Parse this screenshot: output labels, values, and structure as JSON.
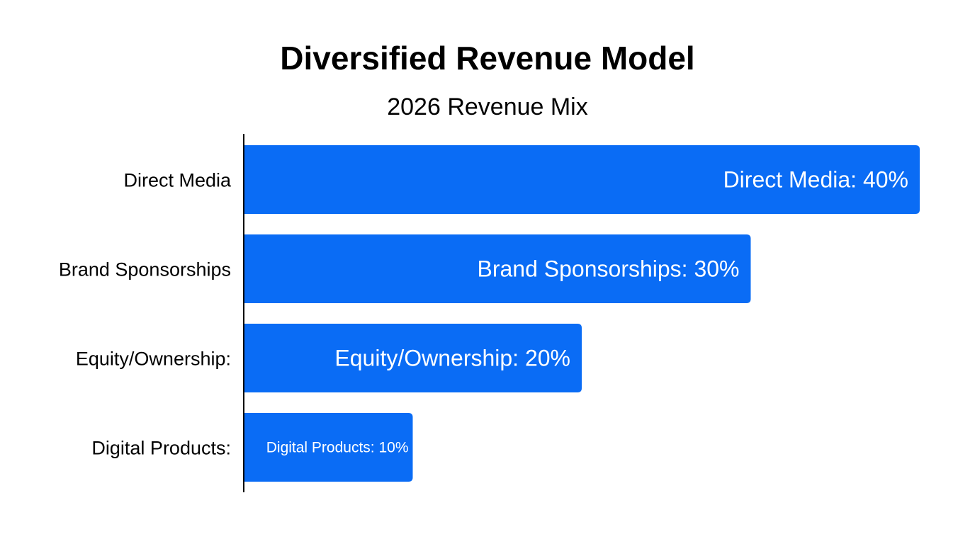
{
  "chart_data": {
    "type": "bar",
    "orientation": "horizontal",
    "title": "Diversified Revenue Model",
    "subtitle": "2026 Revenue Mix",
    "categories": [
      "Direct Media",
      "Brand Sponsorships",
      "Equity/Ownership:",
      "Digital Products:"
    ],
    "values": [
      40,
      30,
      20,
      10
    ],
    "data_labels": [
      "Direct Media: 40%",
      "Brand Sponsorships: 30%",
      "Equity/Ownership: 20%",
      "Digital Products: 10%"
    ],
    "xlim": [
      0,
      40
    ],
    "grid": false,
    "legend": "none",
    "bar_color": "#0a6cf5",
    "label_color": "#ffffff"
  }
}
